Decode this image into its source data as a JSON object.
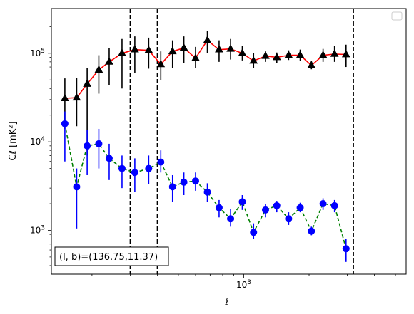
{
  "chart_data": {
    "type": "line",
    "xlabel": "ℓ",
    "ylabel": "Cℓ  [mK²]",
    "xscale": "log",
    "yscale": "log",
    "xlim": [
      130,
      5600
    ],
    "ylim": [
      320,
      320000
    ],
    "x_tick_labels": [
      {
        "value": 1000,
        "label": "10³"
      }
    ],
    "y_tick_labels": [
      {
        "value": 1000,
        "label": "10³"
      },
      {
        "value": 10000,
        "label": "10⁴"
      },
      {
        "value": 100000,
        "label": "10⁵"
      }
    ],
    "grid": false,
    "legend": "top-right",
    "annotation": "(l, b)=(136.75,11.37)",
    "vlines": [
      300,
      400,
      3200
    ],
    "series": [
      {
        "color": "#ff0000",
        "linestyle": "solid",
        "marker": "triangle",
        "marker_color": "#000000",
        "errorbar_color": "#000000",
        "points": [
          {
            "x": 150,
            "y": 31000,
            "lo": 14000,
            "hi": 52000
          },
          {
            "x": 170,
            "y": 31500,
            "lo": 15000,
            "hi": 53000
          },
          {
            "x": 190,
            "y": 45000,
            "lo": 7000,
            "hi": 68000
          },
          {
            "x": 215,
            "y": 65000,
            "lo": 35000,
            "hi": 95000
          },
          {
            "x": 240,
            "y": 80000,
            "lo": 44000,
            "hi": 115000
          },
          {
            "x": 275,
            "y": 100000,
            "lo": 40000,
            "hi": 145000
          },
          {
            "x": 315,
            "y": 110000,
            "lo": 60000,
            "hi": 155000
          },
          {
            "x": 365,
            "y": 108000,
            "lo": 67000,
            "hi": 150000
          },
          {
            "x": 415,
            "y": 75000,
            "lo": 50000,
            "hi": 105000
          },
          {
            "x": 470,
            "y": 105000,
            "lo": 68000,
            "hi": 140000
          },
          {
            "x": 530,
            "y": 115000,
            "lo": 78000,
            "hi": 155000
          },
          {
            "x": 600,
            "y": 88000,
            "lo": 68000,
            "hi": 118000
          },
          {
            "x": 680,
            "y": 140000,
            "lo": 100000,
            "hi": 180000
          },
          {
            "x": 770,
            "y": 110000,
            "lo": 80000,
            "hi": 140000
          },
          {
            "x": 870,
            "y": 112000,
            "lo": 85000,
            "hi": 145000
          },
          {
            "x": 985,
            "y": 100000,
            "lo": 83000,
            "hi": 122000
          },
          {
            "x": 1110,
            "y": 82000,
            "lo": 68000,
            "hi": 100000
          },
          {
            "x": 1260,
            "y": 93000,
            "lo": 80000,
            "hi": 105000
          },
          {
            "x": 1420,
            "y": 90000,
            "lo": 78000,
            "hi": 102000
          },
          {
            "x": 1610,
            "y": 95000,
            "lo": 84000,
            "hi": 108000
          },
          {
            "x": 1820,
            "y": 95000,
            "lo": 82000,
            "hi": 110000
          },
          {
            "x": 2050,
            "y": 73000,
            "lo": 66000,
            "hi": 82000
          },
          {
            "x": 2320,
            "y": 95000,
            "lo": 80000,
            "hi": 112000
          },
          {
            "x": 2620,
            "y": 98000,
            "lo": 80000,
            "hi": 120000
          },
          {
            "x": 2960,
            "y": 97000,
            "lo": 70000,
            "hi": 125000
          }
        ]
      },
      {
        "color": "#008000",
        "linestyle": "dashed",
        "marker": "circle",
        "marker_color": "#0000ff",
        "errorbar_color": "#0000ff",
        "points": [
          {
            "x": 150,
            "y": 16000,
            "lo": 6000,
            "hi": 22000
          },
          {
            "x": 170,
            "y": 3100,
            "lo": 1050,
            "hi": 5000
          },
          {
            "x": 190,
            "y": 9000,
            "lo": 4200,
            "hi": 13500
          },
          {
            "x": 215,
            "y": 9500,
            "lo": 5000,
            "hi": 14000
          },
          {
            "x": 240,
            "y": 6500,
            "lo": 3700,
            "hi": 9500
          },
          {
            "x": 275,
            "y": 5000,
            "lo": 3000,
            "hi": 7000
          },
          {
            "x": 315,
            "y": 4500,
            "lo": 2700,
            "hi": 6500
          },
          {
            "x": 365,
            "y": 5000,
            "lo": 3300,
            "hi": 7000
          },
          {
            "x": 415,
            "y": 5900,
            "lo": 4500,
            "hi": 8000
          },
          {
            "x": 470,
            "y": 3100,
            "lo": 2100,
            "hi": 4200
          },
          {
            "x": 530,
            "y": 3500,
            "lo": 2500,
            "hi": 4500
          },
          {
            "x": 600,
            "y": 3600,
            "lo": 2800,
            "hi": 4500
          },
          {
            "x": 680,
            "y": 2700,
            "lo": 2100,
            "hi": 3400
          },
          {
            "x": 770,
            "y": 1800,
            "lo": 1400,
            "hi": 2200
          },
          {
            "x": 870,
            "y": 1350,
            "lo": 1100,
            "hi": 1750
          },
          {
            "x": 985,
            "y": 2100,
            "lo": 1700,
            "hi": 2500
          },
          {
            "x": 1110,
            "y": 950,
            "lo": 800,
            "hi": 1200
          },
          {
            "x": 1260,
            "y": 1700,
            "lo": 1400,
            "hi": 2000
          },
          {
            "x": 1420,
            "y": 1900,
            "lo": 1600,
            "hi": 2150
          },
          {
            "x": 1610,
            "y": 1350,
            "lo": 1150,
            "hi": 1600
          },
          {
            "x": 1820,
            "y": 1800,
            "lo": 1600,
            "hi": 2050
          },
          {
            "x": 2050,
            "y": 980,
            "lo": 880,
            "hi": 1100
          },
          {
            "x": 2320,
            "y": 2000,
            "lo": 1700,
            "hi": 2300
          },
          {
            "x": 2620,
            "y": 1900,
            "lo": 1600,
            "hi": 2200
          },
          {
            "x": 2960,
            "y": 620,
            "lo": 440,
            "hi": 800
          }
        ]
      }
    ]
  }
}
